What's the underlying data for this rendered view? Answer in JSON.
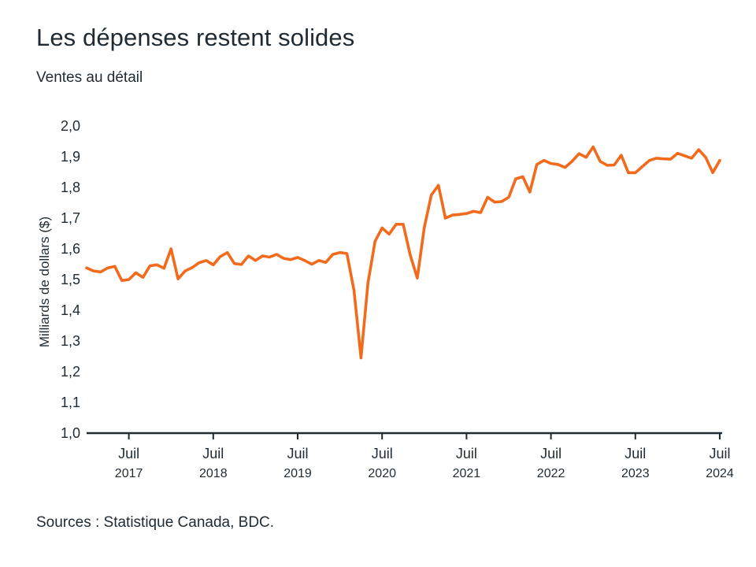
{
  "header": {
    "title": "Les dépenses restent solides",
    "subtitle": "Ventes au détail"
  },
  "footer": {
    "source": "Sources : Statistique Canada, BDC."
  },
  "colors": {
    "series": "#f26b1d",
    "axis": "#1f2a33",
    "text": "#1f2a33"
  },
  "chart_data": {
    "type": "line",
    "title": "Les dépenses restent solides",
    "subtitle": "Ventes au détail",
    "xlabel": "",
    "ylabel": "Milliards de dollars ($)",
    "ylim": [
      1.0,
      2.0
    ],
    "yticks": [
      {
        "value": 1.0,
        "label": "1,0"
      },
      {
        "value": 1.1,
        "label": "1,1"
      },
      {
        "value": 1.2,
        "label": "1,2"
      },
      {
        "value": 1.3,
        "label": "1,3"
      },
      {
        "value": 1.4,
        "label": "1,4"
      },
      {
        "value": 1.5,
        "label": "1,5"
      },
      {
        "value": 1.6,
        "label": "1,6"
      },
      {
        "value": 1.7,
        "label": "1,7"
      },
      {
        "value": 1.8,
        "label": "1,8"
      },
      {
        "value": 1.9,
        "label": "1,9"
      },
      {
        "value": 2.0,
        "label": "2,0"
      }
    ],
    "x_start": "2017-01",
    "x_end": "2024-07",
    "xticks": [
      {
        "month_index": 6,
        "label": "Juil",
        "year": "2017"
      },
      {
        "month_index": 18,
        "label": "Juil",
        "year": "2018"
      },
      {
        "month_index": 30,
        "label": "Juil",
        "year": "2019"
      },
      {
        "month_index": 42,
        "label": "Juil",
        "year": "2020"
      },
      {
        "month_index": 54,
        "label": "Juil",
        "year": "2021"
      },
      {
        "month_index": 66,
        "label": "Juil",
        "year": "2022"
      },
      {
        "month_index": 78,
        "label": "Juil",
        "year": "2023"
      },
      {
        "month_index": 90,
        "label": "Juil",
        "year": "2024"
      }
    ],
    "grid": false,
    "series": [
      {
        "name": "Ventes au détail",
        "values": [
          1.538,
          1.528,
          1.525,
          1.538,
          1.543,
          1.497,
          1.5,
          1.522,
          1.507,
          1.545,
          1.548,
          1.537,
          1.6,
          1.502,
          1.528,
          1.539,
          1.555,
          1.562,
          1.548,
          1.575,
          1.588,
          1.552,
          1.549,
          1.577,
          1.562,
          1.577,
          1.573,
          1.582,
          1.569,
          1.565,
          1.572,
          1.562,
          1.55,
          1.562,
          1.556,
          1.582,
          1.588,
          1.585,
          1.465,
          1.245,
          1.49,
          1.625,
          1.668,
          1.648,
          1.68,
          1.68,
          1.58,
          1.505,
          1.67,
          1.775,
          1.807,
          1.7,
          1.71,
          1.712,
          1.715,
          1.722,
          1.718,
          1.768,
          1.752,
          1.754,
          1.768,
          1.828,
          1.835,
          1.785,
          1.875,
          1.888,
          1.878,
          1.875,
          1.865,
          1.885,
          1.91,
          1.898,
          1.932,
          1.885,
          1.872,
          1.873,
          1.905,
          1.848,
          1.848,
          1.868,
          1.888,
          1.895,
          1.893,
          1.892,
          1.911,
          1.903,
          1.895,
          1.923,
          1.898,
          1.848,
          1.888
        ]
      }
    ]
  }
}
